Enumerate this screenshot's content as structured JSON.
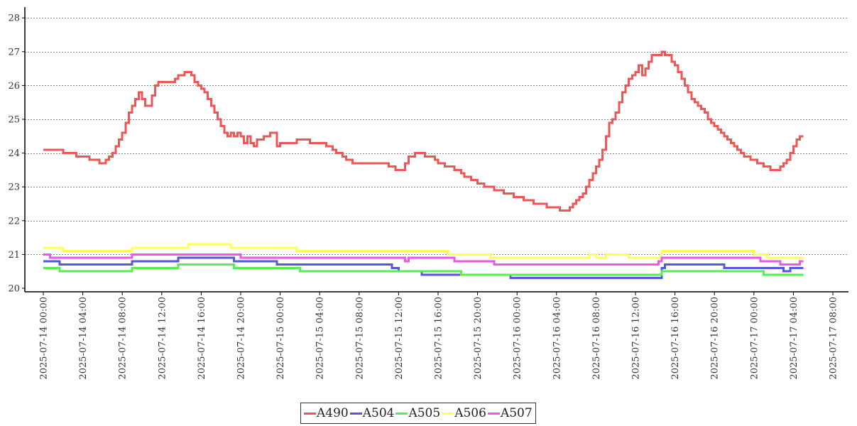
{
  "chart_data": {
    "type": "line",
    "title": "",
    "xlabel": "",
    "ylabel": "",
    "ylim": [
      20,
      28
    ],
    "yticks": [
      20,
      21,
      22,
      23,
      24,
      25,
      26,
      27,
      28
    ],
    "xlim": [
      "2025-07-14 00:00",
      "2025-07-17 08:00"
    ],
    "xticks": [
      "2025-07-14 00:00",
      "2025-07-14 04:00",
      "2025-07-14 08:00",
      "2025-07-14 12:00",
      "2025-07-14 16:00",
      "2025-07-14 20:00",
      "2025-07-15 00:00",
      "2025-07-15 04:00",
      "2025-07-15 08:00",
      "2025-07-15 12:00",
      "2025-07-15 16:00",
      "2025-07-15 20:00",
      "2025-07-16 00:00",
      "2025-07-16 04:00",
      "2025-07-16 08:00",
      "2025-07-16 12:00",
      "2025-07-16 16:00",
      "2025-07-16 20:00",
      "2025-07-17 00:00",
      "2025-07-17 04:00",
      "2025-07-17 08:00"
    ],
    "grid": "horizontal dotted",
    "legend_position": "bottom-center",
    "series": [
      {
        "name": "A490",
        "color": "#ee5555",
        "step": true,
        "points": [
          [
            "2025-07-14 00:00",
            24.1
          ],
          [
            "2025-07-14 02:00",
            24.0
          ],
          [
            "2025-07-14 03:20",
            23.9
          ],
          [
            "2025-07-14 04:40",
            23.8
          ],
          [
            "2025-07-14 05:40",
            23.7
          ],
          [
            "2025-07-14 06:20",
            23.8
          ],
          [
            "2025-07-14 06:40",
            23.9
          ],
          [
            "2025-07-14 07:00",
            24.0
          ],
          [
            "2025-07-14 07:20",
            24.2
          ],
          [
            "2025-07-14 07:40",
            24.4
          ],
          [
            "2025-07-14 08:00",
            24.6
          ],
          [
            "2025-07-14 08:20",
            24.9
          ],
          [
            "2025-07-14 08:40",
            25.2
          ],
          [
            "2025-07-14 09:00",
            25.4
          ],
          [
            "2025-07-14 09:20",
            25.6
          ],
          [
            "2025-07-14 09:40",
            25.8
          ],
          [
            "2025-07-14 10:00",
            25.6
          ],
          [
            "2025-07-14 10:20",
            25.4
          ],
          [
            "2025-07-14 11:00",
            25.7
          ],
          [
            "2025-07-14 11:20",
            26.0
          ],
          [
            "2025-07-14 11:40",
            26.1
          ],
          [
            "2025-07-14 12:40",
            26.1
          ],
          [
            "2025-07-14 13:20",
            26.2
          ],
          [
            "2025-07-14 13:40",
            26.3
          ],
          [
            "2025-07-14 14:20",
            26.4
          ],
          [
            "2025-07-14 15:00",
            26.3
          ],
          [
            "2025-07-14 15:20",
            26.1
          ],
          [
            "2025-07-14 15:40",
            26.0
          ],
          [
            "2025-07-14 16:00",
            25.9
          ],
          [
            "2025-07-14 16:20",
            25.8
          ],
          [
            "2025-07-14 16:40",
            25.6
          ],
          [
            "2025-07-14 17:00",
            25.4
          ],
          [
            "2025-07-14 17:20",
            25.2
          ],
          [
            "2025-07-14 17:40",
            25.0
          ],
          [
            "2025-07-14 18:00",
            24.8
          ],
          [
            "2025-07-14 18:20",
            24.6
          ],
          [
            "2025-07-14 18:40",
            24.5
          ],
          [
            "2025-07-14 19:00",
            24.6
          ],
          [
            "2025-07-14 19:20",
            24.5
          ],
          [
            "2025-07-14 19:40",
            24.6
          ],
          [
            "2025-07-14 20:00",
            24.5
          ],
          [
            "2025-07-14 20:20",
            24.3
          ],
          [
            "2025-07-14 20:40",
            24.5
          ],
          [
            "2025-07-14 21:00",
            24.3
          ],
          [
            "2025-07-14 21:20",
            24.2
          ],
          [
            "2025-07-14 21:40",
            24.4
          ],
          [
            "2025-07-14 22:20",
            24.5
          ],
          [
            "2025-07-14 23:00",
            24.6
          ],
          [
            "2025-07-14 23:40",
            24.2
          ],
          [
            "2025-07-15 00:00",
            24.3
          ],
          [
            "2025-07-15 01:00",
            24.3
          ],
          [
            "2025-07-15 01:40",
            24.4
          ],
          [
            "2025-07-15 03:00",
            24.3
          ],
          [
            "2025-07-15 04:40",
            24.2
          ],
          [
            "2025-07-15 05:20",
            24.1
          ],
          [
            "2025-07-15 05:40",
            24.0
          ],
          [
            "2025-07-15 06:20",
            23.9
          ],
          [
            "2025-07-15 06:40",
            23.8
          ],
          [
            "2025-07-15 07:20",
            23.7
          ],
          [
            "2025-07-15 11:00",
            23.6
          ],
          [
            "2025-07-15 11:40",
            23.5
          ],
          [
            "2025-07-15 12:40",
            23.7
          ],
          [
            "2025-07-15 13:00",
            23.9
          ],
          [
            "2025-07-15 13:40",
            24.0
          ],
          [
            "2025-07-15 14:40",
            23.9
          ],
          [
            "2025-07-15 15:40",
            23.8
          ],
          [
            "2025-07-15 16:00",
            23.7
          ],
          [
            "2025-07-15 16:40",
            23.6
          ],
          [
            "2025-07-15 17:40",
            23.5
          ],
          [
            "2025-07-15 18:20",
            23.4
          ],
          [
            "2025-07-15 18:40",
            23.3
          ],
          [
            "2025-07-15 19:20",
            23.2
          ],
          [
            "2025-07-15 20:00",
            23.1
          ],
          [
            "2025-07-15 20:40",
            23.0
          ],
          [
            "2025-07-15 21:40",
            22.9
          ],
          [
            "2025-07-15 22:40",
            22.8
          ],
          [
            "2025-07-15 23:40",
            22.7
          ],
          [
            "2025-07-16 00:40",
            22.6
          ],
          [
            "2025-07-16 01:40",
            22.5
          ],
          [
            "2025-07-16 03:00",
            22.4
          ],
          [
            "2025-07-16 04:20",
            22.3
          ],
          [
            "2025-07-16 05:20",
            22.4
          ],
          [
            "2025-07-16 05:40",
            22.5
          ],
          [
            "2025-07-16 06:00",
            22.6
          ],
          [
            "2025-07-16 06:20",
            22.7
          ],
          [
            "2025-07-16 06:40",
            22.8
          ],
          [
            "2025-07-16 07:00",
            23.0
          ],
          [
            "2025-07-16 07:20",
            23.2
          ],
          [
            "2025-07-16 07:40",
            23.4
          ],
          [
            "2025-07-16 08:00",
            23.6
          ],
          [
            "2025-07-16 08:20",
            23.8
          ],
          [
            "2025-07-16 08:40",
            24.1
          ],
          [
            "2025-07-16 09:00",
            24.5
          ],
          [
            "2025-07-16 09:20",
            24.9
          ],
          [
            "2025-07-16 09:40",
            25.0
          ],
          [
            "2025-07-16 10:00",
            25.2
          ],
          [
            "2025-07-16 10:20",
            25.5
          ],
          [
            "2025-07-16 10:40",
            25.8
          ],
          [
            "2025-07-16 11:00",
            26.0
          ],
          [
            "2025-07-16 11:20",
            26.2
          ],
          [
            "2025-07-16 11:40",
            26.3
          ],
          [
            "2025-07-16 12:00",
            26.4
          ],
          [
            "2025-07-16 12:20",
            26.6
          ],
          [
            "2025-07-16 12:40",
            26.3
          ],
          [
            "2025-07-16 13:00",
            26.5
          ],
          [
            "2025-07-16 13:20",
            26.7
          ],
          [
            "2025-07-16 13:40",
            26.9
          ],
          [
            "2025-07-16 14:40",
            27.0
          ],
          [
            "2025-07-16 15:00",
            26.9
          ],
          [
            "2025-07-16 15:40",
            26.7
          ],
          [
            "2025-07-16 16:00",
            26.6
          ],
          [
            "2025-07-16 16:20",
            26.4
          ],
          [
            "2025-07-16 16:40",
            26.2
          ],
          [
            "2025-07-16 17:00",
            26.0
          ],
          [
            "2025-07-16 17:20",
            25.8
          ],
          [
            "2025-07-16 17:40",
            25.6
          ],
          [
            "2025-07-16 18:00",
            25.5
          ],
          [
            "2025-07-16 18:20",
            25.4
          ],
          [
            "2025-07-16 18:40",
            25.3
          ],
          [
            "2025-07-16 19:00",
            25.2
          ],
          [
            "2025-07-16 19:20",
            25.0
          ],
          [
            "2025-07-16 19:40",
            24.9
          ],
          [
            "2025-07-16 20:00",
            24.8
          ],
          [
            "2025-07-16 20:20",
            24.7
          ],
          [
            "2025-07-16 20:40",
            24.6
          ],
          [
            "2025-07-16 21:00",
            24.5
          ],
          [
            "2025-07-16 21:20",
            24.4
          ],
          [
            "2025-07-16 21:40",
            24.3
          ],
          [
            "2025-07-16 22:00",
            24.2
          ],
          [
            "2025-07-16 22:20",
            24.1
          ],
          [
            "2025-07-16 22:40",
            24.0
          ],
          [
            "2025-07-16 23:00",
            23.9
          ],
          [
            "2025-07-16 23:40",
            23.8
          ],
          [
            "2025-07-17 00:20",
            23.7
          ],
          [
            "2025-07-17 01:00",
            23.6
          ],
          [
            "2025-07-17 01:40",
            23.5
          ],
          [
            "2025-07-17 02:40",
            23.6
          ],
          [
            "2025-07-17 03:00",
            23.7
          ],
          [
            "2025-07-17 03:20",
            23.8
          ],
          [
            "2025-07-17 03:40",
            24.0
          ],
          [
            "2025-07-17 04:00",
            24.2
          ],
          [
            "2025-07-17 04:20",
            24.4
          ],
          [
            "2025-07-17 04:40",
            24.5
          ],
          [
            "2025-07-17 05:00",
            24.5
          ]
        ]
      },
      {
        "name": "A504",
        "color": "#5555dd",
        "step": true,
        "points": [
          [
            "2025-07-14 00:00",
            20.8
          ],
          [
            "2025-07-14 01:40",
            20.7
          ],
          [
            "2025-07-14 09:00",
            20.8
          ],
          [
            "2025-07-14 13:40",
            20.9
          ],
          [
            "2025-07-14 19:20",
            20.8
          ],
          [
            "2025-07-14 23:40",
            20.7
          ],
          [
            "2025-07-15 11:20",
            20.6
          ],
          [
            "2025-07-15 12:00",
            20.5
          ],
          [
            "2025-07-15 14:20",
            20.4
          ],
          [
            "2025-07-15 17:40",
            20.4
          ],
          [
            "2025-07-15 23:20",
            20.3
          ],
          [
            "2025-07-16 14:40",
            20.6
          ],
          [
            "2025-07-16 15:00",
            20.7
          ],
          [
            "2025-07-16 21:00",
            20.6
          ],
          [
            "2025-07-17 00:40",
            20.6
          ],
          [
            "2025-07-17 03:00",
            20.5
          ],
          [
            "2025-07-17 03:40",
            20.6
          ],
          [
            "2025-07-17 05:00",
            20.6
          ]
        ]
      },
      {
        "name": "A505",
        "color": "#55ee55",
        "step": true,
        "points": [
          [
            "2025-07-14 00:00",
            20.6
          ],
          [
            "2025-07-14 01:40",
            20.5
          ],
          [
            "2025-07-14 09:00",
            20.6
          ],
          [
            "2025-07-14 13:40",
            20.7
          ],
          [
            "2025-07-14 19:20",
            20.6
          ],
          [
            "2025-07-14 20:00",
            20.6
          ],
          [
            "2025-07-15 00:00",
            20.6
          ],
          [
            "2025-07-15 02:00",
            20.5
          ],
          [
            "2025-07-15 14:20",
            20.5
          ],
          [
            "2025-07-15 18:20",
            20.4
          ],
          [
            "2025-07-16 14:40",
            20.5
          ],
          [
            "2025-07-17 00:40",
            20.5
          ],
          [
            "2025-07-17 01:00",
            20.4
          ],
          [
            "2025-07-17 05:00",
            20.4
          ]
        ]
      },
      {
        "name": "A506",
        "color": "#ffff55",
        "step": true,
        "points": [
          [
            "2025-07-14 00:00",
            21.2
          ],
          [
            "2025-07-14 02:00",
            21.1
          ],
          [
            "2025-07-14 09:00",
            21.2
          ],
          [
            "2025-07-14 14:40",
            21.3
          ],
          [
            "2025-07-14 19:00",
            21.2
          ],
          [
            "2025-07-14 23:00",
            21.2
          ],
          [
            "2025-07-15 01:40",
            21.1
          ],
          [
            "2025-07-15 12:00",
            21.1
          ],
          [
            "2025-07-15 17:00",
            21.0
          ],
          [
            "2025-07-15 21:20",
            20.9
          ],
          [
            "2025-07-16 07:20",
            21.0
          ],
          [
            "2025-07-16 08:00",
            20.9
          ],
          [
            "2025-07-16 09:00",
            21.0
          ],
          [
            "2025-07-16 11:20",
            20.9
          ],
          [
            "2025-07-16 14:40",
            21.1
          ],
          [
            "2025-07-17 00:00",
            21.0
          ],
          [
            "2025-07-17 01:20",
            20.9
          ],
          [
            "2025-07-17 05:00",
            20.9
          ]
        ]
      },
      {
        "name": "A507",
        "color": "#ee55ee",
        "step": true,
        "points": [
          [
            "2025-07-14 00:00",
            21.0
          ],
          [
            "2025-07-14 00:40",
            20.9
          ],
          [
            "2025-07-14 09:00",
            21.0
          ],
          [
            "2025-07-14 20:00",
            20.9
          ],
          [
            "2025-07-15 12:40",
            20.8
          ],
          [
            "2025-07-15 13:00",
            20.9
          ],
          [
            "2025-07-15 17:40",
            20.8
          ],
          [
            "2025-07-15 21:40",
            20.7
          ],
          [
            "2025-07-16 14:20",
            20.8
          ],
          [
            "2025-07-16 14:40",
            20.9
          ],
          [
            "2025-07-17 00:40",
            20.8
          ],
          [
            "2025-07-17 02:40",
            20.7
          ],
          [
            "2025-07-17 04:40",
            20.8
          ],
          [
            "2025-07-17 05:00",
            20.8
          ]
        ]
      }
    ]
  }
}
